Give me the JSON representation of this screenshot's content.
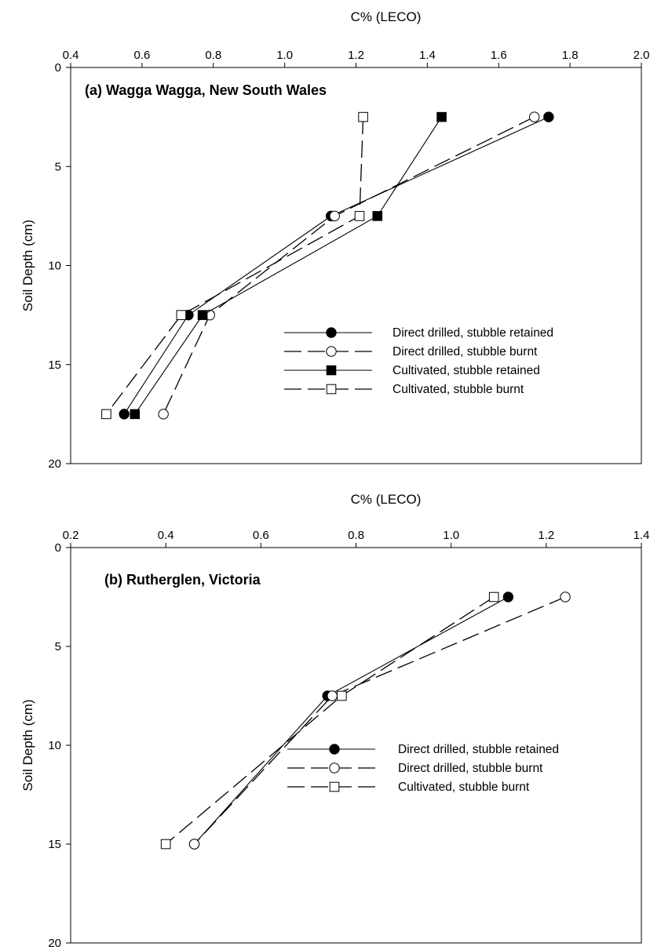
{
  "chart_data": [
    {
      "type": "line",
      "title": "(a) Wagga Wagga, New South Wales",
      "xlabel": "C% (LECO)",
      "ylabel": "Soil Depth (cm)",
      "xlim": [
        0.4,
        2.0
      ],
      "ylim": [
        0,
        20
      ],
      "y_inverted": true,
      "x_axis_position": "top",
      "x_ticks": [
        "0.4",
        "0.6",
        "0.8",
        "1.0",
        "1.2",
        "1.4",
        "1.6",
        "1.8",
        "2.0"
      ],
      "y_ticks": [
        "0",
        "5",
        "10",
        "15",
        "20"
      ],
      "legend_position": "lower-right",
      "series": [
        {
          "name": "Direct drilled, stubble retained",
          "line": "solid",
          "marker": "filled-circle",
          "points": [
            {
              "x": 1.74,
              "y": 2.5
            },
            {
              "x": 1.13,
              "y": 7.5
            },
            {
              "x": 0.73,
              "y": 12.5
            },
            {
              "x": 0.55,
              "y": 17.5
            }
          ]
        },
        {
          "name": "Direct drilled, stubble burnt",
          "line": "dashed",
          "marker": "open-circle",
          "points": [
            {
              "x": 1.7,
              "y": 2.5
            },
            {
              "x": 1.14,
              "y": 7.5
            },
            {
              "x": 0.79,
              "y": 12.5
            },
            {
              "x": 0.66,
              "y": 17.5
            }
          ]
        },
        {
          "name": "Cultivated, stubble retained",
          "line": "solid",
          "marker": "filled-square",
          "points": [
            {
              "x": 1.44,
              "y": 2.5
            },
            {
              "x": 1.26,
              "y": 7.5
            },
            {
              "x": 0.77,
              "y": 12.5
            },
            {
              "x": 0.58,
              "y": 17.5
            }
          ]
        },
        {
          "name": "Cultivated, stubble burnt",
          "line": "dashed",
          "marker": "open-square",
          "points": [
            {
              "x": 1.22,
              "y": 2.5
            },
            {
              "x": 1.21,
              "y": 7.5
            },
            {
              "x": 0.71,
              "y": 12.5
            },
            {
              "x": 0.5,
              "y": 17.5
            }
          ]
        }
      ]
    },
    {
      "type": "line",
      "title": "(b) Rutherglen, Victoria",
      "xlabel": "C% (LECO)",
      "ylabel": "Soil Depth (cm)",
      "xlim": [
        0.2,
        1.4
      ],
      "ylim": [
        0,
        20
      ],
      "y_inverted": true,
      "x_axis_position": "top",
      "x_ticks": [
        "0.2",
        "0.4",
        "0.6",
        "0.8",
        "1.0",
        "1.2",
        "1.4"
      ],
      "y_ticks": [
        "0",
        "5",
        "10",
        "15",
        "20"
      ],
      "legend_position": "lower-right",
      "series": [
        {
          "name": "Direct drilled, stubble retained",
          "line": "solid",
          "marker": "filled-circle",
          "points": [
            {
              "x": 1.12,
              "y": 2.5
            },
            {
              "x": 0.74,
              "y": 7.5
            },
            {
              "x": 0.46,
              "y": 15.0
            }
          ]
        },
        {
          "name": "Direct drilled, stubble burnt",
          "line": "dashed",
          "marker": "open-circle",
          "points": [
            {
              "x": 1.24,
              "y": 2.5
            },
            {
              "x": 0.75,
              "y": 7.5
            },
            {
              "x": 0.46,
              "y": 15.0
            }
          ]
        },
        {
          "name": "Cultivated, stubble burnt",
          "line": "dashed",
          "marker": "open-square",
          "points": [
            {
              "x": 1.09,
              "y": 2.5
            },
            {
              "x": 0.77,
              "y": 7.5
            },
            {
              "x": 0.4,
              "y": 15.0
            }
          ]
        }
      ]
    }
  ]
}
